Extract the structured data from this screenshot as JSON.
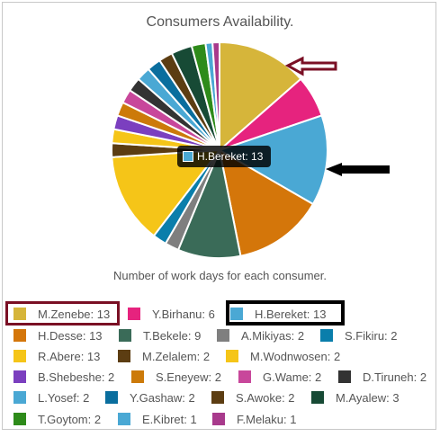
{
  "chart_data": {
    "type": "pie",
    "title": "Consumers Availability.",
    "subtitle": "Number of work days for each consumer.",
    "legend_position": "bottom",
    "slices": [
      {
        "name": "M.Zenebe",
        "label": "M.Zenebe: 13",
        "value": 13,
        "color": "#d6b53a"
      },
      {
        "name": "Y.Birhanu",
        "label": "Y.Birhanu: 6",
        "value": 6,
        "color": "#e6237e"
      },
      {
        "name": "H.Bereket",
        "label": "H.Bereket: 13",
        "value": 13,
        "color": "#4aa8d4"
      },
      {
        "name": "H.Desse",
        "label": "H.Desse: 13",
        "value": 13,
        "color": "#d4760a"
      },
      {
        "name": "T.Bekele",
        "label": "T.Bekele: 9",
        "value": 9,
        "color": "#3a6b58"
      },
      {
        "name": "A.Mikiyas",
        "label": "A.Mikiyas: 2",
        "value": 2,
        "color": "#7f7f7f"
      },
      {
        "name": "S.Fikiru",
        "label": "S.Fikiru: 2",
        "value": 2,
        "color": "#0a7eab"
      },
      {
        "name": "R.Abere",
        "label": "R.Abere: 13",
        "value": 13,
        "color": "#f5c518"
      },
      {
        "name": "M.Zelalem",
        "label": "M.Zelalem: 2",
        "value": 2,
        "color": "#5c3d12"
      },
      {
        "name": "M.Wodnwosen",
        "label": "M.Wodnwosen: 2",
        "value": 2,
        "color": "#f5c518"
      },
      {
        "name": "B.Shebeshe",
        "label": "B.Shebeshe: 2",
        "value": 2,
        "color": "#7b3fbf"
      },
      {
        "name": "S.Eneyew",
        "label": "S.Eneyew: 2",
        "value": 2,
        "color": "#cc7a0a"
      },
      {
        "name": "G.Wame",
        "label": "G.Wame: 2",
        "value": 2,
        "color": "#c8479b"
      },
      {
        "name": "D.Tiruneh",
        "label": "D.Tiruneh: 2",
        "value": 2,
        "color": "#333333"
      },
      {
        "name": "L.Yosef",
        "label": "L.Yosef: 2",
        "value": 2,
        "color": "#4aa8d4"
      },
      {
        "name": "Y.Gashaw",
        "label": "Y.Gashaw: 2",
        "value": 2,
        "color": "#0a6e9e"
      },
      {
        "name": "S.Awoke",
        "label": "S.Awoke: 2",
        "value": 2,
        "color": "#5c3d12"
      },
      {
        "name": "M.Ayalew",
        "label": "M.Ayalew: 3",
        "value": 3,
        "color": "#174a35"
      },
      {
        "name": "T.Goytom",
        "label": "T.Goytom: 2",
        "value": 2,
        "color": "#2e8b1a"
      },
      {
        "name": "E.Kibret",
        "label": "E.Kibret: 1",
        "value": 1,
        "color": "#4aa8d4"
      },
      {
        "name": "F.Melaku",
        "label": "F.Melaku: 1",
        "value": 1,
        "color": "#a83a8c"
      }
    ],
    "tooltip": {
      "label": "H.Bereket: 13",
      "slice": "H.Bereket"
    },
    "highlighted_legend": [
      {
        "slice": "M.Zenebe",
        "color": "#7a0f24"
      },
      {
        "slice": "H.Bereket",
        "color": "#000000"
      }
    ],
    "annotation_arrows": [
      {
        "points_to": "M.Zenebe",
        "color": "#7a0f24",
        "style": "outline"
      },
      {
        "points_to": "H.Bereket",
        "color": "#000000",
        "style": "filled"
      }
    ]
  }
}
